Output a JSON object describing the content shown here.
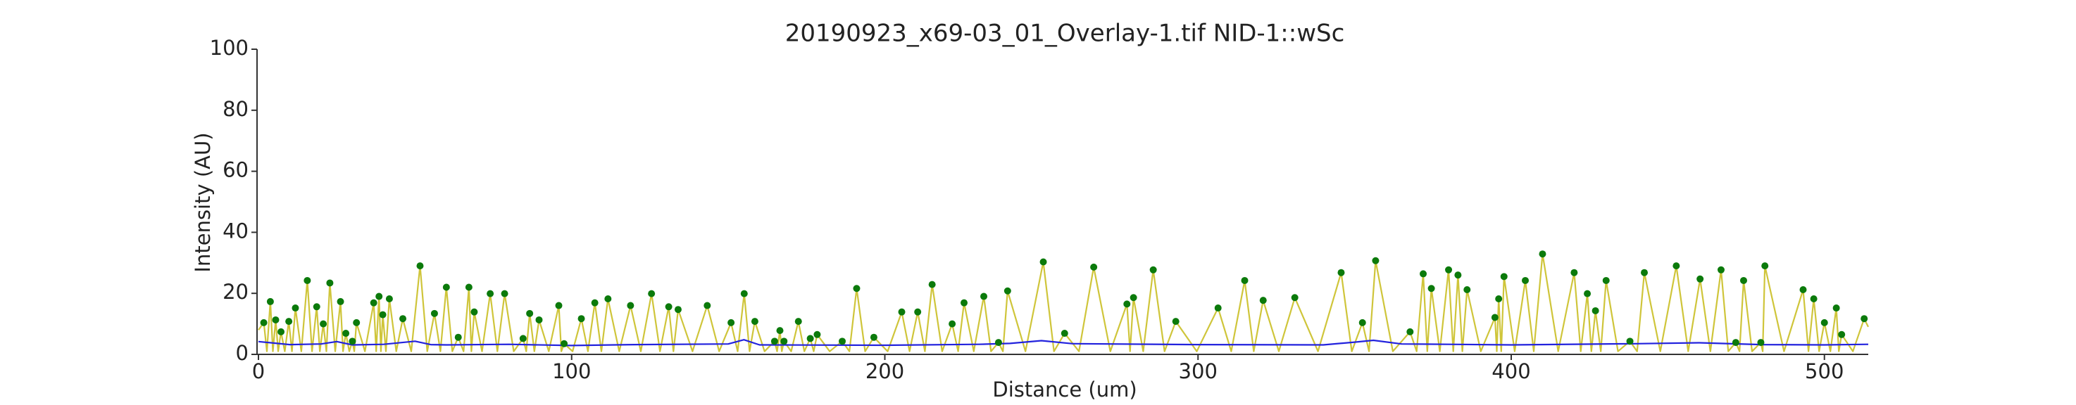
{
  "chart_data": {
    "type": "line",
    "title": "20190923_x69-03_01_Overlay-1.tif NID-1::wSc",
    "x_label": "Distance (um)",
    "y_label": "Intensity (AU)",
    "xlim": [
      0,
      514
    ],
    "ylim": [
      0,
      100
    ],
    "xticks": [
      0,
      100,
      200,
      300,
      400,
      500
    ],
    "yticks": [
      0,
      20,
      40,
      60,
      80,
      100
    ],
    "grid": false,
    "series": [
      {
        "style": "line",
        "color": "#cfc53a",
        "x": [
          0,
          1.7,
          2.7,
          3.8,
          4.6,
          5.5,
          6.3,
          7.2,
          8.4,
          9.7,
          10.7,
          11.8,
          13.7,
          15.6,
          17.1,
          18.6,
          19.6,
          20.7,
          21.7,
          22.8,
          24.5,
          26.2,
          27,
          27.9,
          29,
          30,
          30.6,
          31.3,
          34,
          36.8,
          37.6,
          38.5,
          39.1,
          39.7,
          40.7,
          41.8,
          44,
          46.1,
          48.8,
          51.6,
          53.9,
          56.2,
          58.1,
          60,
          61.9,
          63.8,
          65.5,
          67.2,
          68,
          68.9,
          71.4,
          74,
          76.3,
          78.6,
          81.5,
          84.5,
          85.5,
          86.6,
          88.1,
          89.6,
          92.7,
          95.9,
          96.7,
          97.6,
          100.3,
          103.1,
          105.2,
          107.4,
          109.5,
          111.6,
          115.2,
          118.8,
          122.1,
          125.5,
          128.2,
          131,
          132.5,
          134,
          138.6,
          143.3,
          147.1,
          150.9,
          153,
          155.1,
          156.8,
          158.5,
          161.6,
          164.8,
          165.6,
          166.5,
          167.1,
          167.8,
          170.1,
          172.4,
          174.3,
          176.2,
          177.3,
          178.4,
          182.4,
          186.4,
          188.7,
          191,
          193.7,
          196.5,
          200.9,
          205.4,
          207.9,
          210.5,
          212.8,
          215.1,
          218.3,
          221.5,
          223.4,
          225.3,
          228.4,
          231.6,
          233.9,
          236.3,
          237.7,
          239.2,
          244.9,
          250.6,
          254,
          257.4,
          262,
          266.7,
          272,
          277.3,
          278.3,
          279.4,
          282.5,
          285.7,
          289.3,
          292.9,
          299.6,
          306.4,
          310.6,
          314.9,
          317.8,
          320.8,
          325.8,
          330.9,
          338.3,
          345.7,
          349.1,
          352.5,
          354.6,
          356.7,
          362.2,
          367.7,
          369.8,
          371.9,
          373.2,
          374.5,
          377.2,
          380,
          381.5,
          383,
          384.4,
          385.9,
          390.3,
          394.8,
          395.4,
          396,
          396.8,
          397.7,
          401.1,
          404.5,
          407.2,
          410,
          415,
          420.1,
          422.2,
          424.3,
          425.6,
          426.9,
          428.6,
          430.3,
          434.1,
          437.9,
          440.2,
          442.5,
          447.6,
          452.7,
          456.5,
          460.3,
          463.6,
          467,
          469.3,
          471.7,
          472.9,
          474.2,
          476.9,
          479.7,
          480.3,
          481,
          487.1,
          493.2,
          494.9,
          496.6,
          498.3,
          500,
          501.9,
          503.8,
          504.6,
          505.5,
          509.1,
          512.7,
          514
        ],
        "values": [
          8,
          10.4,
          1,
          17.3,
          1,
          11.3,
          1,
          7.4,
          1,
          10.8,
          1,
          15.2,
          1,
          24.2,
          1,
          15.6,
          1,
          10,
          1,
          23.4,
          1,
          17.3,
          1,
          6.9,
          1,
          4.3,
          1,
          10.4,
          1,
          16.9,
          1,
          19,
          1,
          13,
          1,
          18.2,
          1,
          11.7,
          1,
          29,
          1,
          13.4,
          1,
          22,
          1,
          5.6,
          1,
          22,
          1,
          13.9,
          1,
          19.9,
          1,
          19.9,
          1,
          5.2,
          1,
          13.4,
          1,
          11.3,
          1,
          16,
          1,
          3.5,
          1,
          11.7,
          1,
          16.9,
          1,
          18.2,
          1,
          16,
          1,
          19.9,
          1,
          15.6,
          1,
          14.7,
          1,
          16,
          1,
          10.4,
          1,
          19.9,
          1,
          10.8,
          1,
          4.3,
          1,
          7.8,
          1,
          4.3,
          1,
          10.8,
          1,
          5.2,
          1,
          6.5,
          1,
          4.3,
          1,
          21.6,
          1,
          5.6,
          1,
          13.9,
          1,
          13.9,
          1,
          22.9,
          1,
          10,
          1,
          16.9,
          1,
          19,
          1,
          3.9,
          1,
          20.8,
          1,
          30.3,
          1,
          6.9,
          1,
          28.6,
          1,
          16.5,
          1,
          18.6,
          1,
          27.7,
          1,
          10.8,
          1,
          15.2,
          1,
          24.2,
          1,
          17.7,
          1,
          18.6,
          1,
          26.8,
          1,
          10.4,
          1,
          30.7,
          1,
          7.4,
          1,
          26.4,
          1,
          21.6,
          1,
          27.7,
          1,
          26,
          1,
          21.2,
          1,
          12.1,
          1,
          18.2,
          1,
          25.5,
          1,
          24.2,
          1,
          32.9,
          1,
          26.8,
          1,
          19.9,
          1,
          14.3,
          1,
          24.2,
          1,
          4.3,
          1,
          26.8,
          1,
          29,
          1,
          24.7,
          1,
          27.7,
          1,
          3.9,
          1,
          24.2,
          1,
          3.9,
          1,
          29,
          1,
          21.2,
          1,
          18.2,
          1,
          10.4,
          1,
          15.2,
          1,
          6.5,
          1,
          11.7,
          9
        ]
      },
      {
        "style": "line",
        "color": "#2222dd",
        "x": [
          0,
          10,
          20,
          25,
          30,
          40,
          50,
          55,
          60,
          80,
          100,
          120,
          150,
          155,
          160,
          200,
          230,
          240,
          250,
          260,
          300,
          340,
          350,
          356,
          365,
          380,
          400,
          440,
          460,
          480,
          500,
          514
        ],
        "values": [
          4.2,
          3.2,
          3.4,
          4.2,
          3.1,
          3.3,
          4.3,
          3.2,
          3.1,
          3.3,
          2.9,
          3.2,
          3.4,
          4.8,
          3.1,
          3,
          3.3,
          3.6,
          4.5,
          3.5,
          3.2,
          3.1,
          4,
          4.6,
          3.4,
          3.3,
          3.1,
          3.5,
          3.8,
          3.2,
          3.1,
          3.3
        ]
      },
      {
        "style": "markers",
        "color": "#0b7a0b",
        "x": [
          1.7,
          3.8,
          5.5,
          7.2,
          9.7,
          11.8,
          15.6,
          18.6,
          20.7,
          22.8,
          26.2,
          27.9,
          30,
          31.3,
          36.8,
          38.5,
          39.7,
          41.8,
          46.1,
          51.6,
          56.2,
          60,
          63.8,
          67.2,
          68.9,
          74,
          78.6,
          84.5,
          86.6,
          89.6,
          95.9,
          97.6,
          103.1,
          107.4,
          111.6,
          118.8,
          125.5,
          131,
          134,
          143.3,
          150.9,
          155.1,
          158.5,
          164.8,
          166.5,
          167.8,
          172.4,
          176.2,
          178.4,
          186.4,
          191,
          196.5,
          205.4,
          210.5,
          215.1,
          221.5,
          225.3,
          231.6,
          236.3,
          239.2,
          250.6,
          257.4,
          266.7,
          277.3,
          279.4,
          285.7,
          292.9,
          306.4,
          314.9,
          320.8,
          330.9,
          345.7,
          352.5,
          356.7,
          367.7,
          371.9,
          374.5,
          380,
          383,
          385.9,
          394.8,
          396,
          397.7,
          404.5,
          410,
          420.1,
          424.3,
          426.9,
          430.3,
          437.9,
          442.5,
          452.7,
          460.3,
          467,
          471.7,
          474.2,
          479.7,
          481,
          493.2,
          496.6,
          500,
          503.8,
          505.5,
          512.7
        ],
        "values": [
          10.4,
          17.3,
          11.3,
          7.4,
          10.8,
          15.2,
          24.2,
          15.6,
          10,
          23.4,
          17.3,
          6.9,
          4.3,
          10.4,
          16.9,
          19,
          13,
          18.2,
          11.7,
          29,
          13.4,
          22,
          5.6,
          22,
          13.9,
          19.9,
          19.9,
          5.2,
          13.4,
          11.3,
          16,
          3.5,
          11.7,
          16.9,
          18.2,
          16,
          19.9,
          15.6,
          14.7,
          16,
          10.4,
          19.9,
          10.8,
          4.3,
          7.8,
          4.3,
          10.8,
          5.2,
          6.5,
          4.3,
          21.6,
          5.6,
          13.9,
          13.9,
          22.9,
          10,
          16.9,
          19,
          3.9,
          20.8,
          30.3,
          6.9,
          28.6,
          16.5,
          18.6,
          27.7,
          10.8,
          15.2,
          24.2,
          17.7,
          18.6,
          26.8,
          10.4,
          30.7,
          7.4,
          26.4,
          21.6,
          27.7,
          26,
          21.2,
          12.1,
          18.2,
          25.5,
          24.2,
          32.9,
          26.8,
          19.9,
          14.3,
          24.2,
          4.3,
          26.8,
          29,
          24.7,
          27.7,
          3.9,
          24.2,
          3.9,
          29,
          21.2,
          18.2,
          10.4,
          15.2,
          6.5,
          11.7
        ]
      }
    ]
  }
}
